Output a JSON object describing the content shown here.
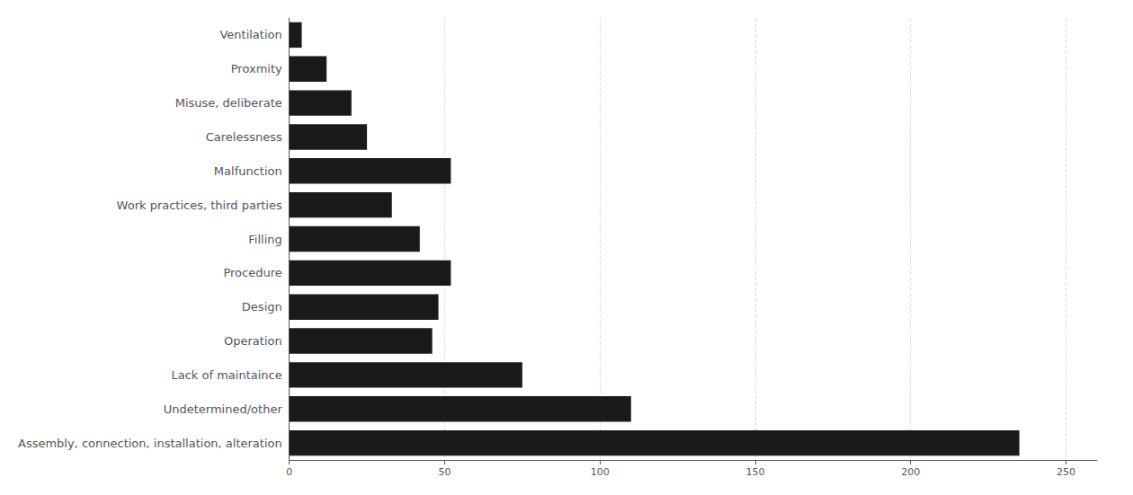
{
  "chart_data": {
    "type": "bar",
    "orientation": "horizontal",
    "categories": [
      "Assembly, connection, installation, alteration",
      "Undetermined/other",
      "Lack of maintaince",
      "Operation",
      "Design",
      "Procedure",
      "Filling",
      "Work practices, third parties",
      "Malfunction",
      "Carelessness",
      "Misuse, deliberate",
      "Proxmity",
      "Ventilation"
    ],
    "values": [
      235,
      110,
      75,
      46,
      48,
      52,
      42,
      33,
      52,
      25,
      20,
      12,
      4
    ],
    "color": "#1a1a1a",
    "xlim": [
      0,
      260
    ],
    "xticks": [
      0,
      50,
      100,
      150,
      200,
      250
    ],
    "grid": true
  }
}
